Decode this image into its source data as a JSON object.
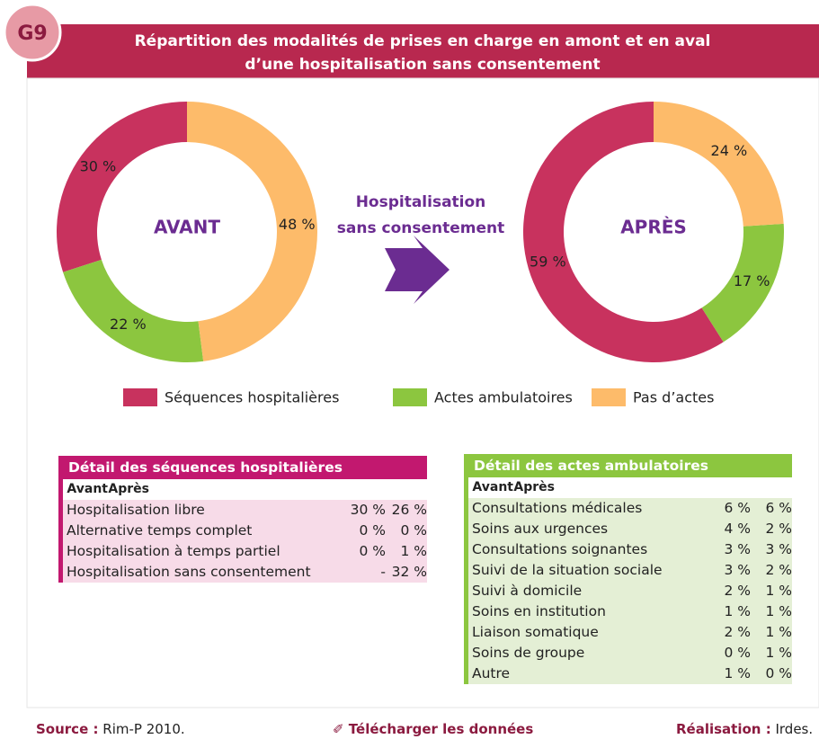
{
  "badge": "G9",
  "title": [
    "Répartition des modalités de prises en charge en amont et en aval",
    "d’une hospitalisation sans consentement"
  ],
  "arrow_label": [
    "Hospitalisation",
    "sans consentement"
  ],
  "chart_data": [
    {
      "type": "pie",
      "center_label": "AVANT",
      "categories": [
        "Séquences hospitalières",
        "Actes ambulatoires",
        "Pas d’actes"
      ],
      "values": [
        30,
        22,
        48
      ],
      "value_labels": [
        "30 %",
        "22 %",
        "48 %"
      ],
      "colors": [
        "#c8325e",
        "#8cc63f",
        "#fdbb6a"
      ]
    },
    {
      "type": "pie",
      "center_label": "APRÈS",
      "categories": [
        "Séquences hospitalières",
        "Actes ambulatoires",
        "Pas d’actes"
      ],
      "values": [
        59,
        17,
        24
      ],
      "value_labels": [
        "59 %",
        "17 %",
        "24 %"
      ],
      "colors": [
        "#c8325e",
        "#8cc63f",
        "#fdbb6a"
      ]
    }
  ],
  "tables": [
    {
      "title": "Détail des séquences hospitalières",
      "columns": [
        "Avant",
        "Après"
      ],
      "rows": [
        [
          "Hospitalisation libre",
          "30 %",
          "26 %"
        ],
        [
          "Alternative temps complet",
          "0 %",
          "0 %"
        ],
        [
          "Hospitalisation à temps partiel",
          "0 %",
          "1 %"
        ],
        [
          "Hospitalisation sans consentement",
          "-",
          "32 %"
        ]
      ]
    },
    {
      "title": "Détail des actes ambulatoires",
      "columns": [
        "Avant",
        "Après"
      ],
      "rows": [
        [
          "Consultations médicales",
          "6 %",
          "6 %"
        ],
        [
          "Soins aux urgences",
          "4 %",
          "2 %"
        ],
        [
          "Consultations soignantes",
          "3 %",
          "3 %"
        ],
        [
          "Suivi de la situation sociale",
          "3 %",
          "2 %"
        ],
        [
          "Suivi à domicile",
          "2 %",
          "1 %"
        ],
        [
          "Soins en institution",
          "1 %",
          "1 %"
        ],
        [
          "Liaison somatique",
          "2 %",
          "1 %"
        ],
        [
          "Soins de groupe",
          "0 %",
          "1 %"
        ],
        [
          "Autre",
          "1 %",
          "0 %"
        ]
      ]
    }
  ],
  "footer": {
    "source_label": "Source :",
    "source": "Rim-P 2010.",
    "download": "Télécharger les données",
    "credit_label": "Réalisation :",
    "credit": "Irdes."
  }
}
